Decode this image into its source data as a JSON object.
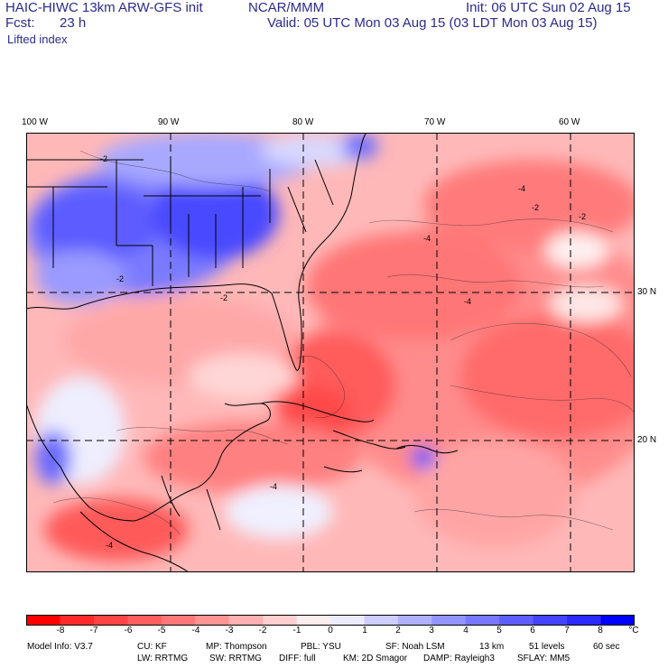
{
  "header": {
    "model": "HAIC-HIWC 13km ARW-GFS init",
    "org": "NCAR/MMM",
    "init": "Init: 06 UTC Sun 02 Aug 15",
    "fcst_label": "Fcst:",
    "fcst_value": "23 h",
    "valid": "Valid: 05 UTC Mon 03 Aug 15 (03 LDT Mon 03 Aug 15)",
    "field": "Lifted index"
  },
  "map": {
    "lon_labels": [
      "100 W",
      "90 W",
      "80 W",
      "70 W",
      "60 W"
    ],
    "lat_labels": [
      "30 N",
      "20 N"
    ],
    "contour_labels": [
      "-2",
      "-4",
      "-2",
      "-4",
      "-2",
      "-4",
      "-2",
      "-4",
      "-2",
      "-4"
    ],
    "colors": {
      "negative": "#ff2020",
      "positive": "#2030ff",
      "land_line": "#000000",
      "grid": "#000000"
    }
  },
  "colorbar": {
    "ticks": [
      "-8",
      "-7",
      "-6",
      "-5",
      "-4",
      "-3",
      "-2",
      "-1",
      "0",
      "1",
      "2",
      "3",
      "4",
      "5",
      "6",
      "7",
      "8"
    ],
    "unit": "°C",
    "colors": [
      "#ff0000",
      "#ff2a2a",
      "#ff4444",
      "#ff5e5e",
      "#ff7878",
      "#ff9494",
      "#ffb0b0",
      "#ffcece",
      "#ffecec",
      "#ececff",
      "#cecefe",
      "#b0b0ff",
      "#9494ff",
      "#7878ff",
      "#5e5eff",
      "#4444ff",
      "#2a2aff",
      "#0000ff"
    ]
  },
  "footer": {
    "line1": [
      "Model Info: V3.7",
      "CU: KF",
      "MP: Thompson",
      "PBL: YSU",
      "SF: Noah LSM",
      "13 km",
      "51 levels",
      "60 sec"
    ],
    "line2": [
      "LW: RRTMG",
      "SW: RRTMG",
      "DIFF: full",
      "KM: 2D Smagor",
      "DAMP: Rayleigh3",
      "SFLAY: MM5"
    ]
  }
}
